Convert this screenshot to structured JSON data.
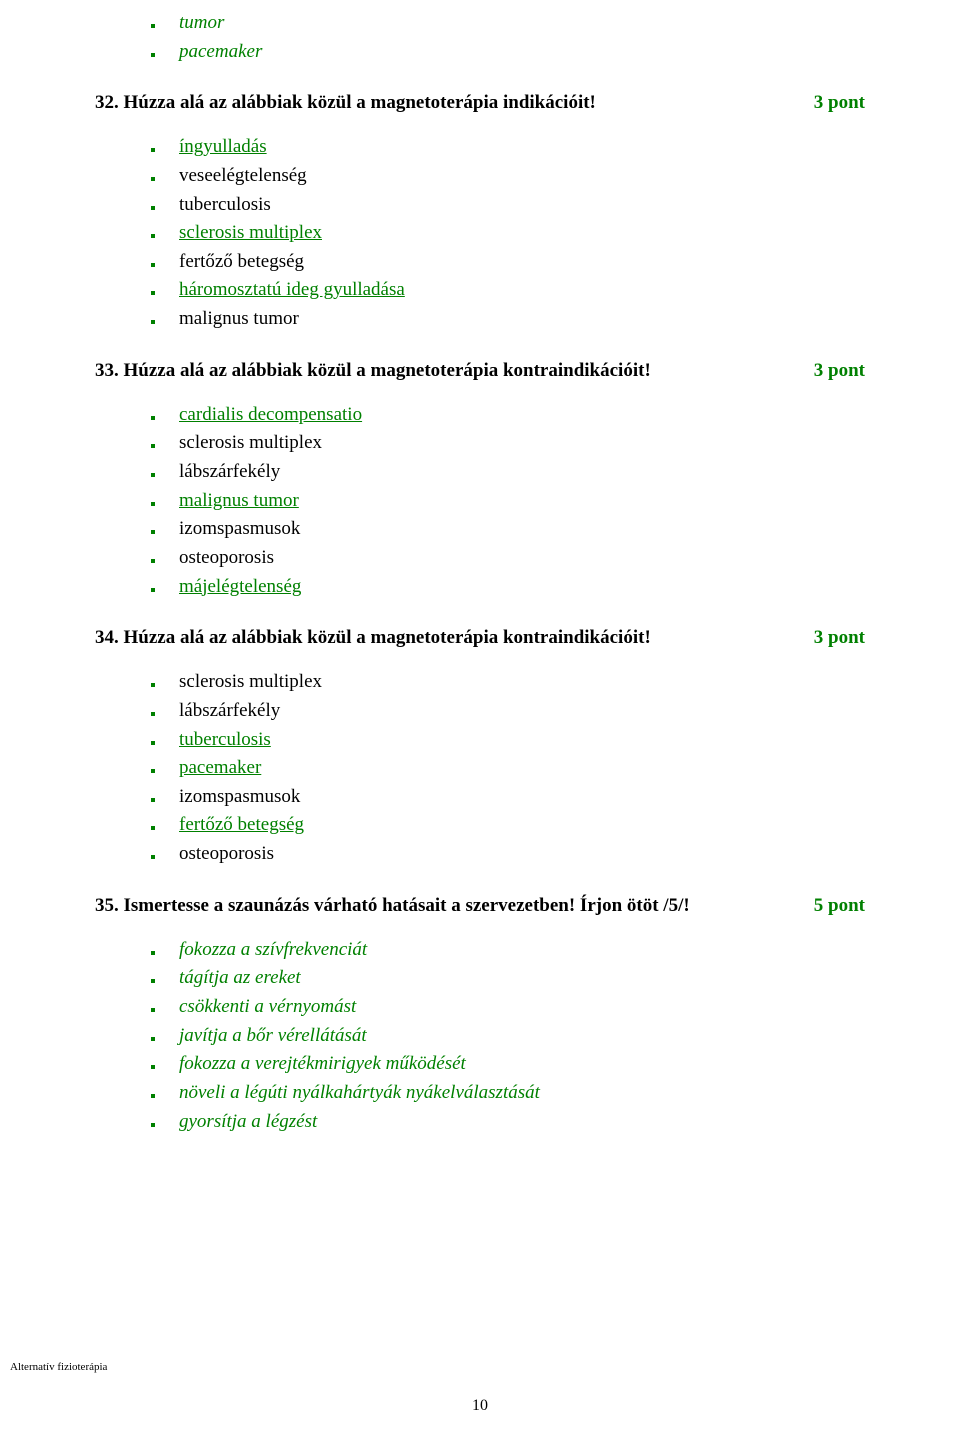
{
  "colors": {
    "green": "#008000",
    "black": "#000000",
    "bg": "#ffffff"
  },
  "intro_items": [
    {
      "text": "tumor",
      "style": "green-italic"
    },
    {
      "text": "pacemaker",
      "style": "green-italic"
    }
  ],
  "questions": [
    {
      "number": "32.",
      "text": "Húzza alá az alábbiak közül a magnetoterápia indikációit!",
      "points": "3 pont",
      "items": [
        {
          "text": "íngyulladás",
          "style": "green underline"
        },
        {
          "text": "veseelégtelenség",
          "style": "black"
        },
        {
          "text": "tuberculosis",
          "style": "black"
        },
        {
          "text": "sclerosis multiplex",
          "style": "green underline"
        },
        {
          "text": "fertőző betegség",
          "style": "black"
        },
        {
          "text": "háromosztatú ideg gyulladása",
          "style": "green underline"
        },
        {
          "text": "malignus tumor",
          "style": "black"
        }
      ]
    },
    {
      "number": "33.",
      "text": "Húzza alá az alábbiak közül a magnetoterápia kontraindikációit!",
      "points": "3 pont",
      "items": [
        {
          "text": "cardialis decompensatio",
          "style": "green underline"
        },
        {
          "text": "sclerosis multiplex",
          "style": "black"
        },
        {
          "text": "lábszárfekély",
          "style": "black"
        },
        {
          "text": "malignus tumor",
          "style": "green underline"
        },
        {
          "text": "izomspasmusok",
          "style": "black"
        },
        {
          "text": "osteoporosis",
          "style": "black"
        },
        {
          "text": "májelégtelenség",
          "style": "green underline"
        }
      ]
    },
    {
      "number": "34.",
      "text": "Húzza alá az alábbiak közül a magnetoterápia kontraindikációit!",
      "points": "3 pont",
      "items": [
        {
          "text": "sclerosis multiplex",
          "style": "black"
        },
        {
          "text": "lábszárfekély",
          "style": "black"
        },
        {
          "text": "tuberculosis",
          "style": "green underline"
        },
        {
          "text": "pacemaker",
          "style": "green underline"
        },
        {
          "text": "izomspasmusok",
          "style": "black"
        },
        {
          "text": "fertőző betegség",
          "style": "green underline"
        },
        {
          "text": "osteoporosis",
          "style": "black"
        }
      ]
    },
    {
      "number": "35.",
      "text": "Ismertesse a szaunázás várható hatásait a szervezetben! Írjon ötöt /5/!",
      "points": "5 pont",
      "items": [
        {
          "text": "fokozza a szívfrekvenciát",
          "style": "green-italic"
        },
        {
          "text": "tágítja az ereket",
          "style": "green-italic"
        },
        {
          "text": "csökkenti a vérnyomást",
          "style": "green-italic"
        },
        {
          "text": "javítja a bőr vérellátását",
          "style": "green-italic"
        },
        {
          "text": "fokozza a verejtékmirigyek működését",
          "style": "green-italic"
        },
        {
          "text": "növeli a légúti nyálkahártyák nyákelválasztását",
          "style": "green-italic"
        },
        {
          "text": "gyorsítja a légzést",
          "style": "green-italic"
        }
      ]
    }
  ],
  "footer": "Alternatív fizioterápia",
  "page_number": "10"
}
